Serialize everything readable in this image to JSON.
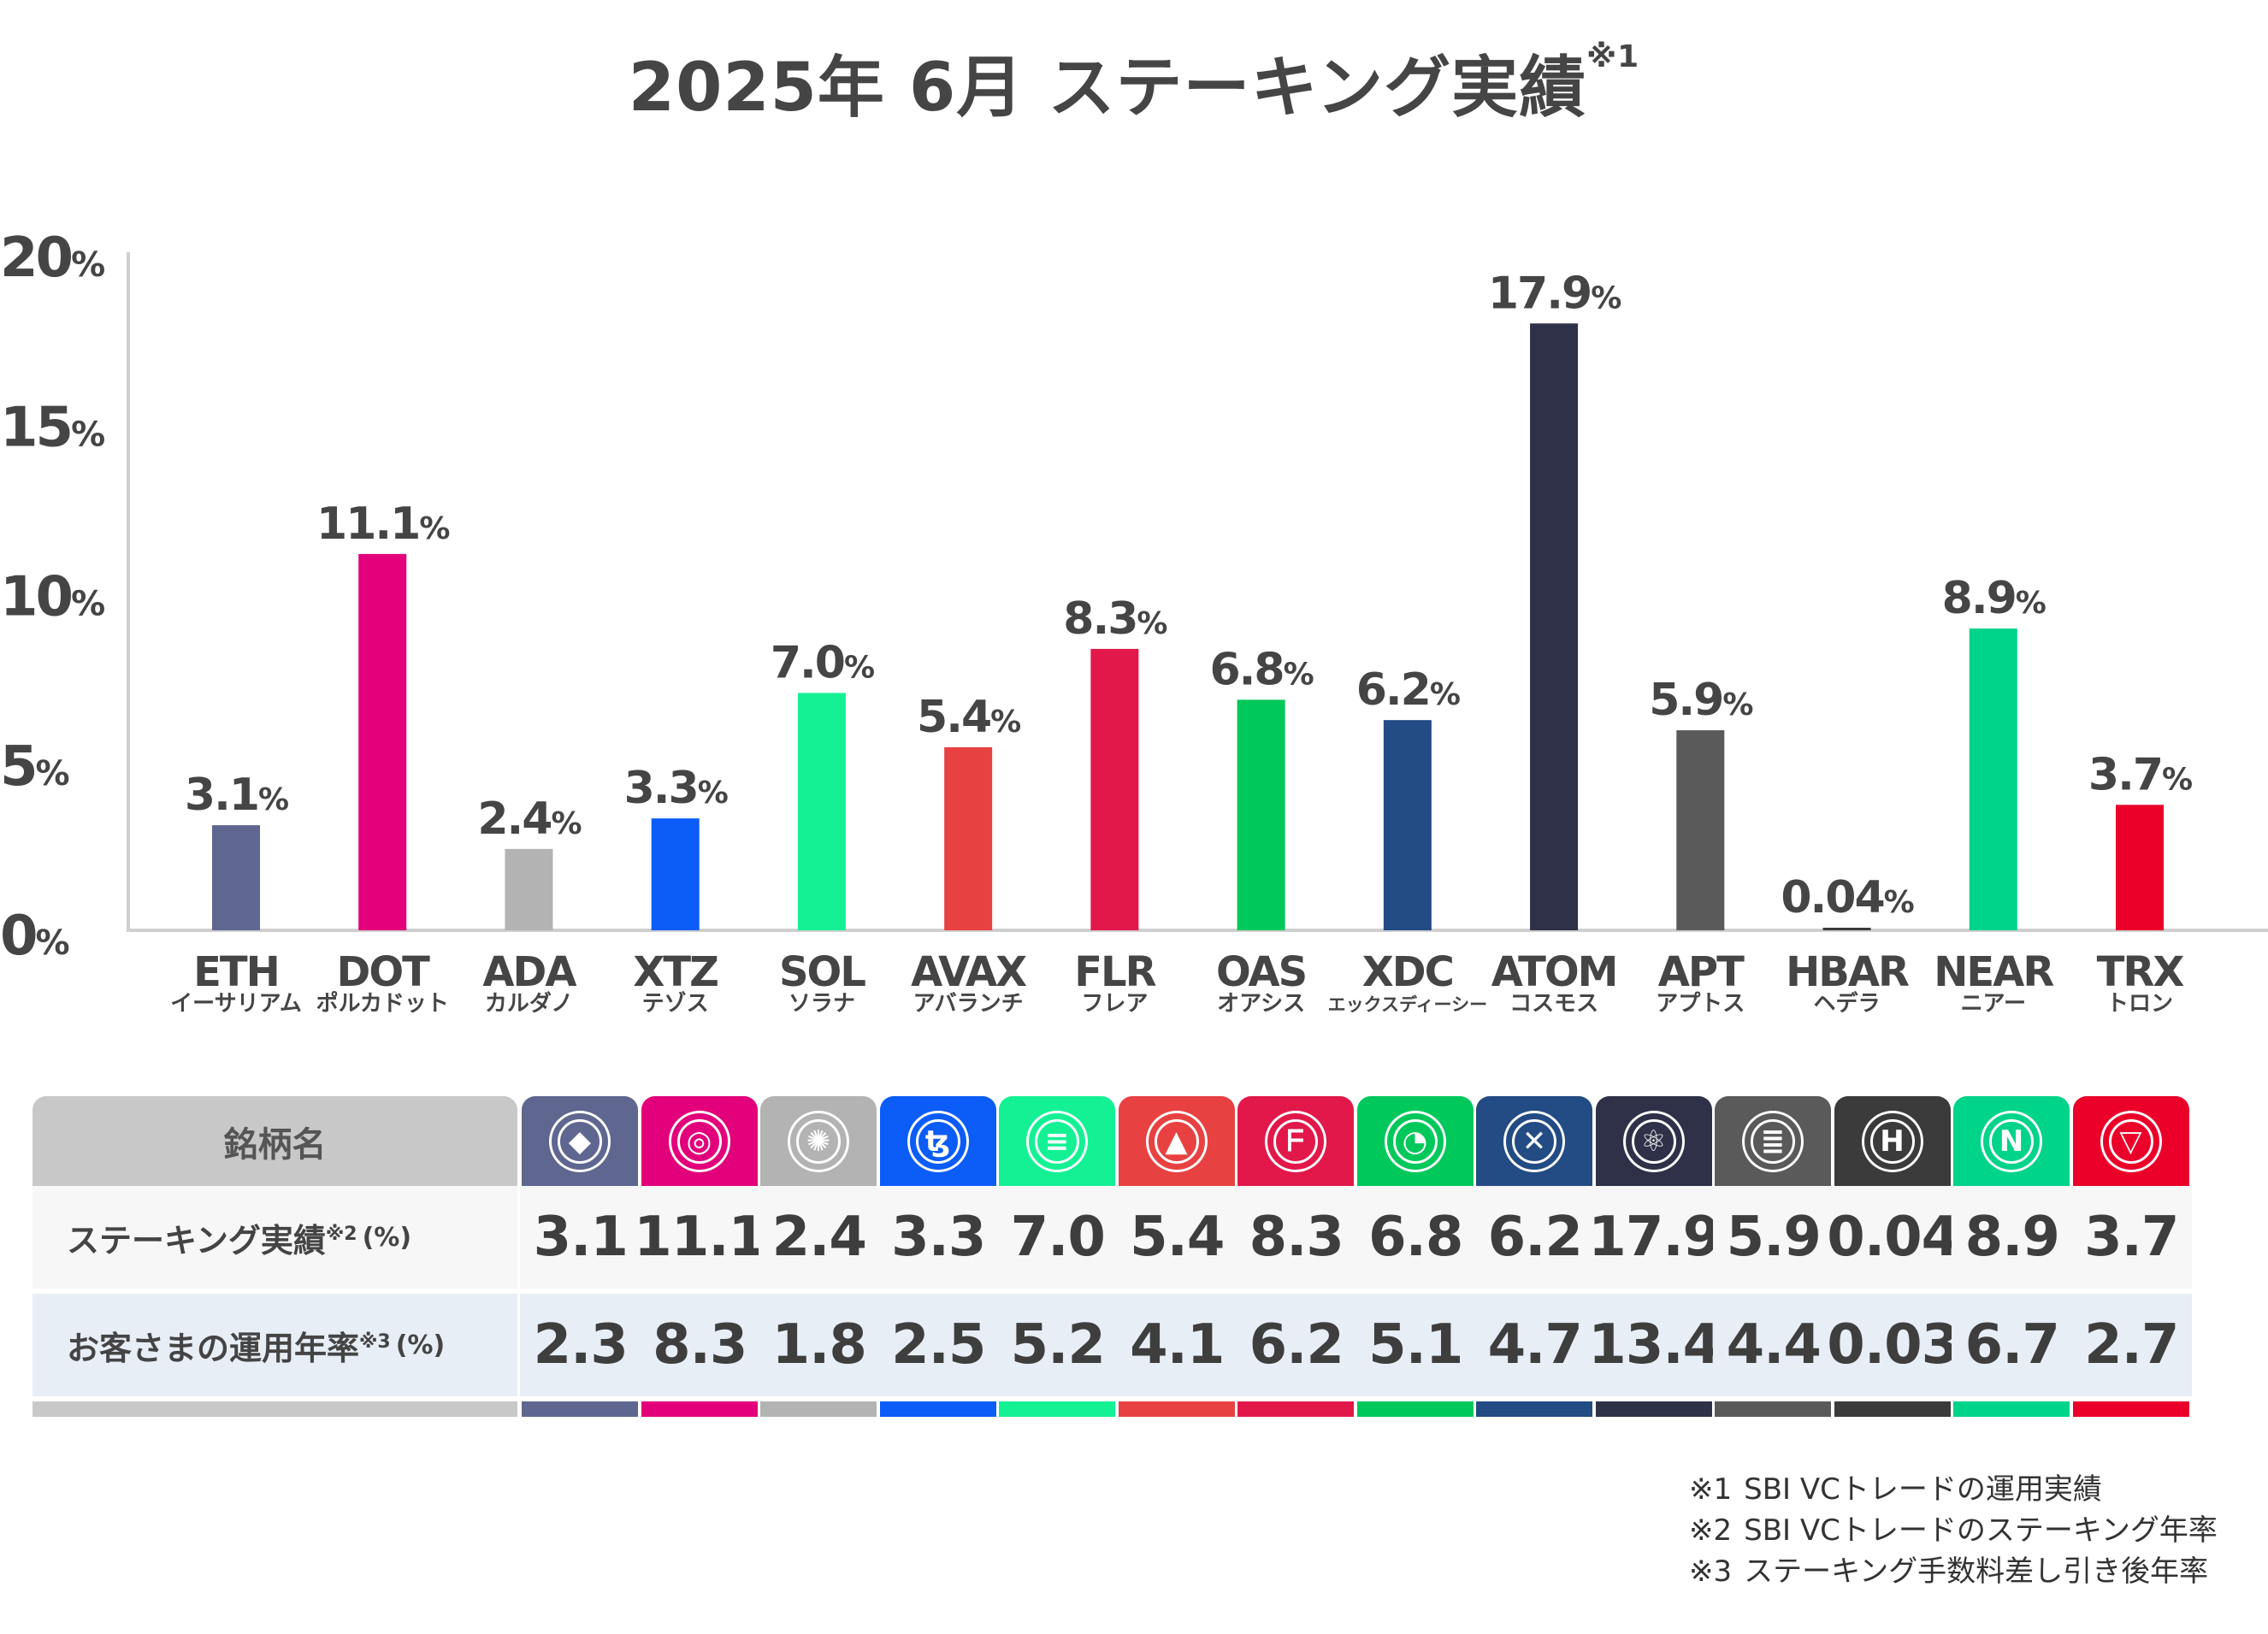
{
  "title": "2025年 6月  ステーキング実績",
  "title_note": "※1",
  "chart_data": {
    "type": "bar",
    "title": "2025年 6月  ステーキング実績",
    "ylim": [
      0,
      20
    ],
    "yticks": [
      {
        "value": 0,
        "label": "0",
        "unit": "%"
      },
      {
        "value": 5,
        "label": "5",
        "unit": "%"
      },
      {
        "value": 10,
        "label": "10",
        "unit": "%"
      },
      {
        "value": 15,
        "label": "15",
        "unit": "%"
      },
      {
        "value": 20,
        "label": "20",
        "unit": "%"
      }
    ],
    "value_unit": "%",
    "categories": [
      "ETH",
      "DOT",
      "ADA",
      "XTZ",
      "SOL",
      "AVAX",
      "FLR",
      "OAS",
      "XDC",
      "ATOM",
      "APT",
      "HBAR",
      "NEAR",
      "TRX"
    ],
    "category_kana": [
      "イーサリアム",
      "ポルカドット",
      "カルダノ",
      "テゾス",
      "ソラナ",
      "アバランチ",
      "フレア",
      "オアシス",
      "エックスディーシー",
      "コスモス",
      "アプトス",
      "ヘデラ",
      "ニアー",
      "トロン"
    ],
    "values": [
      3.1,
      11.1,
      2.4,
      3.3,
      7.0,
      5.4,
      8.3,
      6.8,
      6.2,
      17.9,
      5.9,
      0.04,
      8.9,
      3.7
    ],
    "value_labels": [
      "3.1",
      "11.1",
      "2.4",
      "3.3",
      "7.0",
      "5.4",
      "8.3",
      "6.8",
      "6.2",
      "17.9",
      "5.9",
      "0.04",
      "8.9",
      "3.7"
    ],
    "colors": [
      "#5f6790",
      "#e3007b",
      "#b3b3b3",
      "#0c5cf7",
      "#14f195",
      "#e84142",
      "#e2184b",
      "#00c85a",
      "#234b84",
      "#2e3148",
      "#5a5a5a",
      "#3b3b3b",
      "#00d38a",
      "#eb0029"
    ],
    "grid": false
  },
  "table": {
    "header_label": "銘柄名",
    "icons": [
      "ethereum-icon",
      "polkadot-icon",
      "cardano-icon",
      "tezos-icon",
      "solana-icon",
      "avalanche-icon",
      "flare-icon",
      "oasys-icon",
      "xdc-icon",
      "cosmos-icon",
      "aptos-icon",
      "hedera-icon",
      "near-icon",
      "tron-icon"
    ],
    "rows": [
      {
        "label": "ステーキング実績",
        "note": "※2",
        "unit": "(%)",
        "values": [
          "3.1",
          "11.1",
          "2.4",
          "3.3",
          "7.0",
          "5.4",
          "8.3",
          "6.8",
          "6.2",
          "17.9",
          "5.9",
          "0.04",
          "8.9",
          "3.7"
        ]
      },
      {
        "label": "お客さまの運用年率",
        "note": "※3",
        "unit": "(%)",
        "values": [
          "2.3",
          "8.3",
          "1.8",
          "2.5",
          "5.2",
          "4.1",
          "6.2",
          "5.1",
          "4.7",
          "13.4",
          "4.4",
          "0.03",
          "6.7",
          "2.7"
        ]
      }
    ]
  },
  "notes": [
    {
      "mark": "※1",
      "text": "SBI VCトレードの運用実績"
    },
    {
      "mark": "※2",
      "text": "SBI VCトレードのステーキング年率"
    },
    {
      "mark": "※3",
      "text": "ステーキング手数料差し引き後年率"
    }
  ]
}
